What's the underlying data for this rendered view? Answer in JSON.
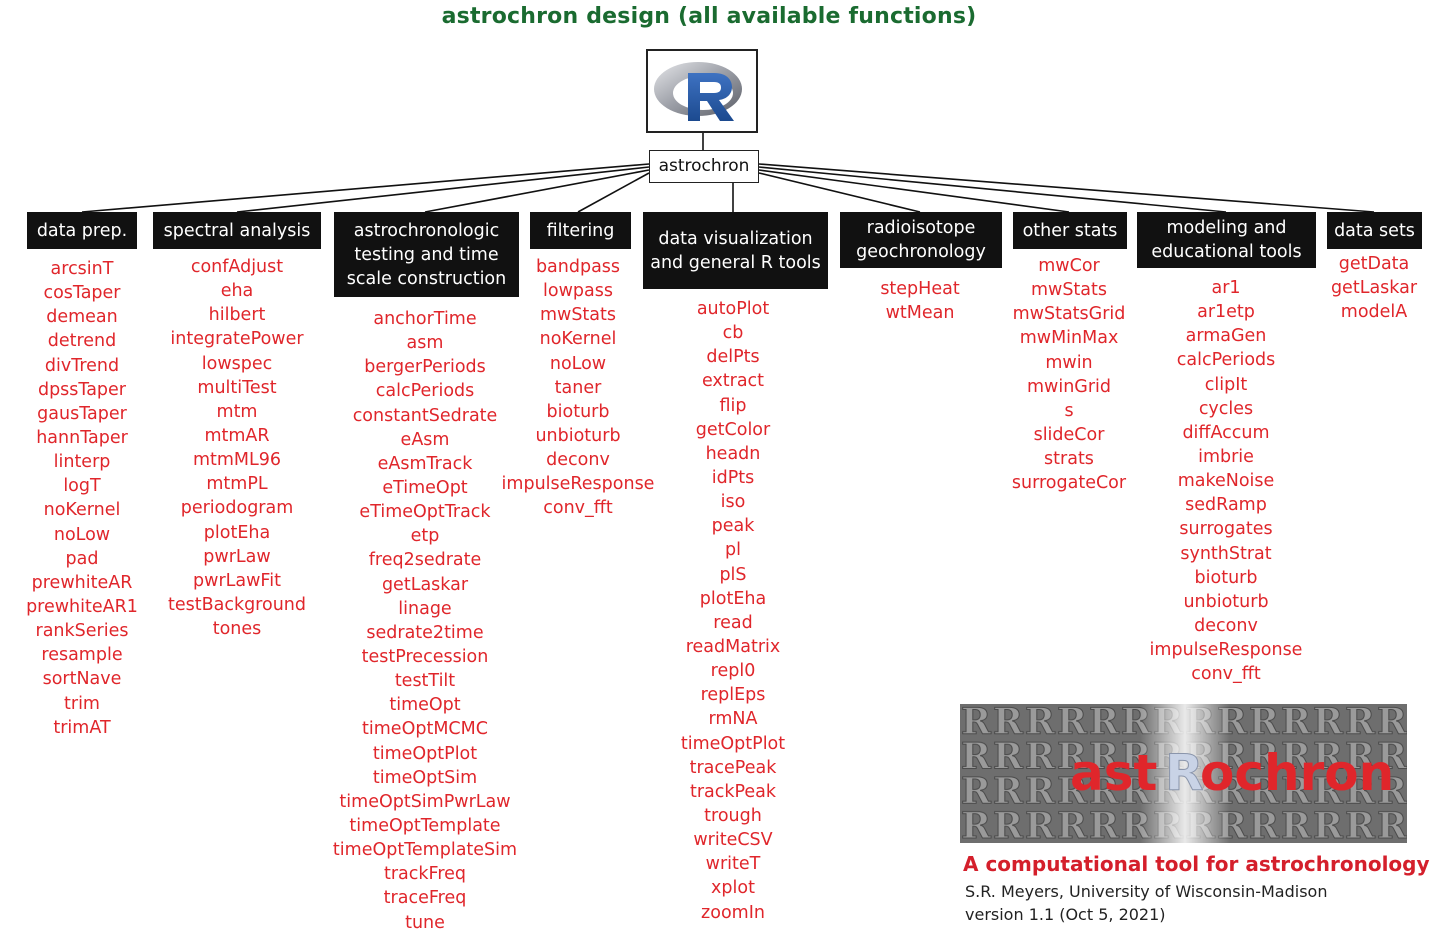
{
  "title": "astrochron design (all available functions)",
  "root_label": "astrochron",
  "colors": {
    "title": "#1a6b30",
    "function_text": "#e0262b",
    "category_bg": "#111111",
    "brand_red": "#d41f2b"
  },
  "categories": [
    {
      "id": "data-prep",
      "label": "data prep.",
      "functions": [
        "arcsinT",
        "cosTaper",
        "demean",
        "detrend",
        "divTrend",
        "dpssTaper",
        "gausTaper",
        "hannTaper",
        "linterp",
        "logT",
        "noKernel",
        "noLow",
        "pad",
        "prewhiteAR",
        "prewhiteAR1",
        "rankSeries",
        "resample",
        "sortNave",
        "trim",
        "trimAT"
      ]
    },
    {
      "id": "spectral-analysis",
      "label": "spectral analysis",
      "functions": [
        "confAdjust",
        "eha",
        "hilbert",
        "integratePower",
        "lowspec",
        "multiTest",
        "mtm",
        "mtmAR",
        "mtmML96",
        "mtmPL",
        "periodogram",
        "plotEha",
        "pwrLaw",
        "pwrLawFit",
        "testBackground",
        "tones"
      ]
    },
    {
      "id": "astrochronologic-testing",
      "label": "astrochronologic testing and time scale construction",
      "functions": [
        "anchorTime",
        "asm",
        "bergerPeriods",
        "calcPeriods",
        "constantSedrate",
        "eAsm",
        "eAsmTrack",
        "eTimeOpt",
        "eTimeOptTrack",
        "etp",
        "freq2sedrate",
        "getLaskar",
        "linage",
        "sedrate2time",
        "testPrecession",
        "testTilt",
        "timeOpt",
        "timeOptMCMC",
        "timeOptPlot",
        "timeOptSim",
        "timeOptSimPwrLaw",
        "timeOptTemplate",
        "timeOptTemplateSim",
        "trackFreq",
        "traceFreq",
        "tune"
      ]
    },
    {
      "id": "filtering",
      "label": "filtering",
      "functions": [
        "bandpass",
        "lowpass",
        "mwStats",
        "noKernel",
        "noLow",
        "taner",
        "bioturb",
        "unbioturb",
        "deconv",
        "impulseResponse",
        "conv_fft"
      ]
    },
    {
      "id": "data-visualization",
      "label": "data visualization and general R tools",
      "functions": [
        "autoPlot",
        "cb",
        "delPts",
        "extract",
        "flip",
        "getColor",
        "headn",
        "idPts",
        "iso",
        "peak",
        "pl",
        "plS",
        "plotEha",
        "read",
        "readMatrix",
        "repl0",
        "replEps",
        "rmNA",
        "timeOptPlot",
        "tracePeak",
        "trackPeak",
        "trough",
        "writeCSV",
        "writeT",
        "xplot",
        "zoomIn"
      ]
    },
    {
      "id": "radioisotope-geochronology",
      "label": "radioisotope geochronology",
      "functions": [
        "stepHeat",
        "wtMean"
      ]
    },
    {
      "id": "other-stats",
      "label": "other stats",
      "functions": [
        "mwCor",
        "mwStats",
        "mwStatsGrid",
        "mwMinMax",
        "mwin",
        "mwinGrid",
        "s",
        "slideCor",
        "strats",
        "surrogateCor"
      ]
    },
    {
      "id": "modeling-educational",
      "label": "modeling and educational tools",
      "functions": [
        "ar1",
        "ar1etp",
        "armaGen",
        "calcPeriods",
        "clipIt",
        "cycles",
        "diffAccum",
        "imbrie",
        "makeNoise",
        "sedRamp",
        "surrogates",
        "synthStrat",
        "bioturb",
        "unbioturb",
        "deconv",
        "impulseResponse",
        "conv_fft"
      ]
    },
    {
      "id": "data-sets",
      "label": "data sets",
      "functions": [
        "getData",
        "getLaskar",
        "modelA"
      ]
    }
  ],
  "logo": {
    "text_left": "ast",
    "text_r": "R",
    "text_right": "ochron",
    "icon": "r-logo-icon"
  },
  "brand": {
    "subtitle": "A computational tool for astrochronology",
    "author": "S.R. Meyers, University of Wisconsin-Madison",
    "version": "version 1.1 (Oct 5, 2021)"
  }
}
